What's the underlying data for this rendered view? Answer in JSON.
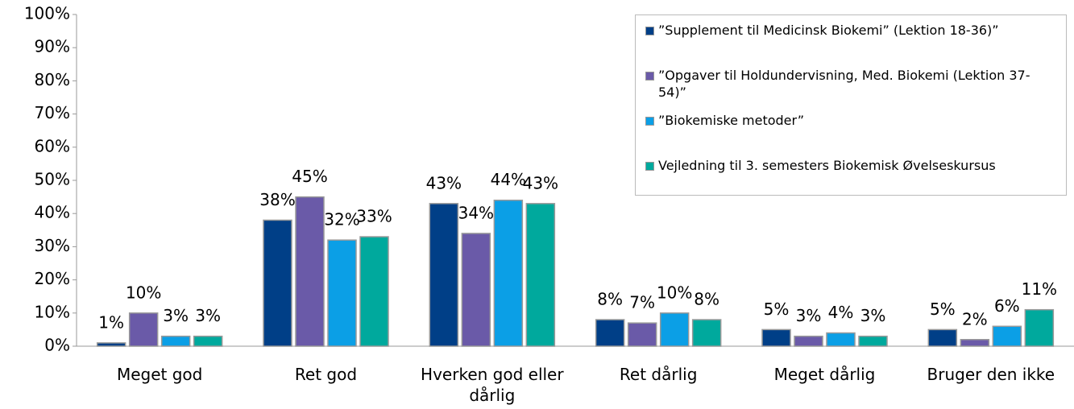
{
  "chart_data": {
    "type": "bar",
    "categories": [
      "Meget god",
      "Ret god",
      "Hverken god eller dårlig",
      "Ret dårlig",
      "Meget dårlig",
      "Bruger den ikke"
    ],
    "series": [
      {
        "name": "”Supplement til Medicinsk Biokemi” (Lektion 18-36)”",
        "color": "#003f87",
        "values": [
          1,
          38,
          43,
          8,
          5,
          5
        ],
        "value_labels": [
          "1%",
          "38%",
          "43%",
          "8%",
          "5%",
          "5%"
        ]
      },
      {
        "name": "”Opgaver til Holdundervisning, Med. Biokemi (Lektion 37-54)”",
        "color": "#6a5aa8",
        "values": [
          10,
          45,
          34,
          7,
          3,
          2
        ],
        "value_labels": [
          "10%",
          "45%",
          "34%",
          "7%",
          "3%",
          "2%"
        ]
      },
      {
        "name": "”Biokemiske metoder”",
        "color": "#0b9fe6",
        "values": [
          3,
          32,
          44,
          10,
          4,
          6
        ],
        "value_labels": [
          "3%",
          "32%",
          "44%",
          "10%",
          "4%",
          "6%"
        ]
      },
      {
        "name": "Vejledning til 3. semesters Biokemisk Øvelseskursus",
        "color": "#00a99d",
        "values": [
          3,
          33,
          43,
          8,
          3,
          11
        ],
        "value_labels": [
          "3%",
          "33%",
          "43%",
          "8%",
          "3%",
          "11%"
        ]
      }
    ],
    "ylim": [
      0,
      100
    ],
    "yticks": [
      {
        "value": 0,
        "label": "0%"
      },
      {
        "value": 10,
        "label": "10%"
      },
      {
        "value": 20,
        "label": "20%"
      },
      {
        "value": 30,
        "label": "30%"
      },
      {
        "value": 40,
        "label": "40%"
      },
      {
        "value": 50,
        "label": "50%"
      },
      {
        "value": 60,
        "label": "60%"
      },
      {
        "value": 70,
        "label": "70%"
      },
      {
        "value": 80,
        "label": "80%"
      },
      {
        "value": 90,
        "label": "90%"
      },
      {
        "value": 100,
        "label": "100%"
      }
    ],
    "legend": "top-right"
  }
}
